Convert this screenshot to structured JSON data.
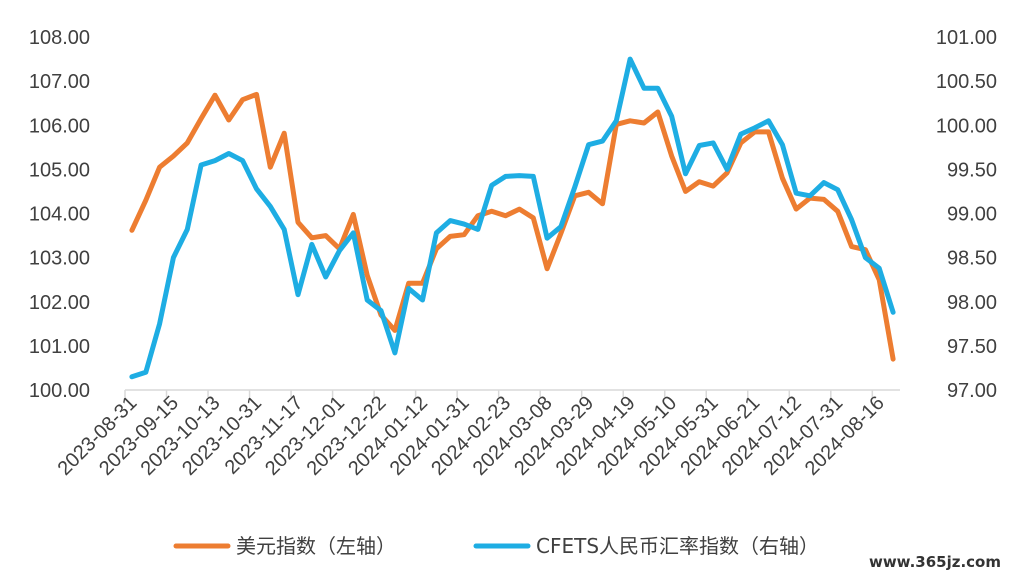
{
  "chart_data": {
    "type": "line",
    "title": "",
    "grid": false,
    "legend_position": "bottom",
    "y_left": {
      "min": 100,
      "max": 108,
      "step": 1,
      "decimals": 2
    },
    "y_right": {
      "min": 97,
      "max": 101,
      "step": 0.5,
      "decimals": 2
    },
    "x_tick_labels": [
      "2023-08-31",
      "2023-09-15",
      "2023-10-13",
      "2023-10-31",
      "2023-11-17",
      "2023-12-01",
      "2023-12-22",
      "2024-01-12",
      "2024-01-31",
      "2024-02-23",
      "2024-03-08",
      "2024-03-29",
      "2024-04-19",
      "2024-05-10",
      "2024-05-31",
      "2024-06-21",
      "2024-07-12",
      "2024-07-31",
      "2024-08-16"
    ],
    "series": [
      {
        "name": "美元指数（左轴）",
        "axis": "left",
        "color": "#ED7D31",
        "values": [
          103.62,
          104.3,
          105.05,
          105.3,
          105.6,
          106.15,
          106.68,
          106.12,
          106.58,
          106.7,
          105.05,
          105.82,
          103.8,
          103.45,
          103.5,
          103.2,
          103.98,
          102.6,
          101.7,
          101.35,
          102.42,
          102.42,
          103.2,
          103.48,
          103.52,
          103.95,
          104.05,
          103.95,
          104.1,
          103.9,
          102.75,
          103.55,
          104.4,
          104.48,
          104.22,
          106.02,
          106.1,
          106.05,
          106.3,
          105.3,
          104.5,
          104.72,
          104.62,
          104.92,
          105.6,
          105.85,
          105.85,
          104.8,
          104.1,
          104.35,
          104.32,
          104.05,
          103.25,
          103.18,
          102.5,
          100.7
        ]
      },
      {
        "name": "CFETS人民币汇率指数（右轴）",
        "axis": "right",
        "color": "#1EADE3",
        "values": [
          97.15,
          97.2,
          97.75,
          98.5,
          98.82,
          99.55,
          99.6,
          99.68,
          99.6,
          99.28,
          99.08,
          98.82,
          98.08,
          98.65,
          98.28,
          98.58,
          98.78,
          98.02,
          97.9,
          97.42,
          98.15,
          98.02,
          98.78,
          98.92,
          98.88,
          98.82,
          99.32,
          99.42,
          99.43,
          99.42,
          98.72,
          98.85,
          99.3,
          99.78,
          99.82,
          100.05,
          100.75,
          100.42,
          100.42,
          100.1,
          99.45,
          99.77,
          99.8,
          99.5,
          99.9,
          99.97,
          100.05,
          99.78,
          99.23,
          99.2,
          99.35,
          99.27,
          98.93,
          98.5,
          98.38,
          97.88
        ]
      }
    ]
  },
  "watermark": "www.365jz.com"
}
